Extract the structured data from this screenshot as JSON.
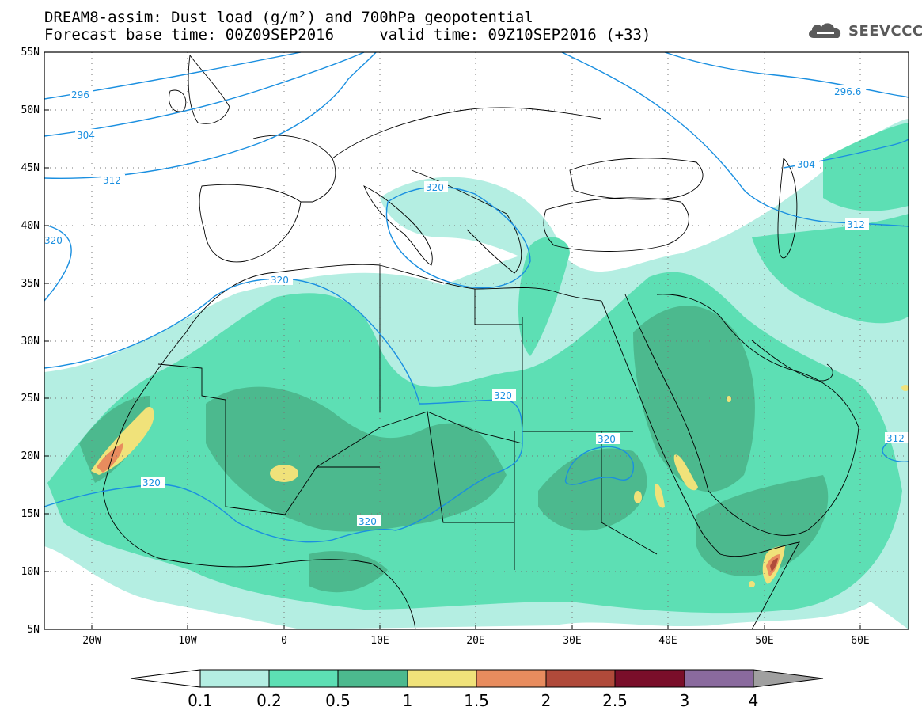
{
  "title": {
    "line1": "DREAM8-assim: Dust load (g/m²) and 700hPa geopotential",
    "base_label": "Forecast base time: 00Z09SEP2016",
    "valid_label": "valid time: 09Z10SEP2016 (+33)"
  },
  "logo": {
    "text": "SEEVCCC",
    "icon": "cloud-icon"
  },
  "map": {
    "lon_range": [
      -25,
      65
    ],
    "lat_range": [
      5,
      55
    ],
    "x_ticks": [
      "20W",
      "10W",
      "0",
      "10E",
      "20E",
      "30E",
      "40E",
      "50E",
      "60E"
    ],
    "y_ticks": [
      "55N",
      "50N",
      "45N",
      "40N",
      "35N",
      "30N",
      "25N",
      "20N",
      "15N",
      "10N",
      "5N"
    ],
    "gridlines": "dotted",
    "contour_color": "#1a8fe0",
    "contour_labels": [
      "296",
      "304",
      "312",
      "320",
      "320",
      "320",
      "320",
      "320",
      "320",
      "312",
      "312",
      "296.6",
      "304",
      "312"
    ]
  },
  "colorbar": {
    "labels": [
      "0.1",
      "0.2",
      "0.5",
      "1",
      "1.5",
      "2",
      "2.5",
      "3",
      "4"
    ],
    "colors": [
      "#b4eee2",
      "#5ddfb4",
      "#4cb98e",
      "#f0e27a",
      "#e88c5e",
      "#b04a3a",
      "#7a0e2a",
      "#8a6a9e",
      "#a0a0a0"
    ],
    "under_color": "#ffffff",
    "over_color": "#a0a0a0"
  }
}
